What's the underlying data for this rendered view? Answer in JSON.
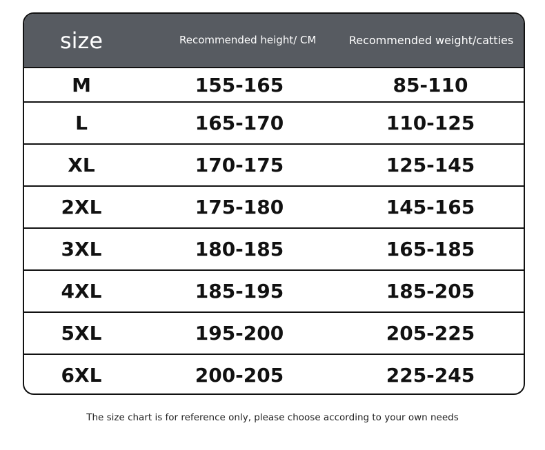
{
  "header": {
    "size": "size",
    "height": "Recommended height/ CM",
    "weight": "Recommended weight/catties"
  },
  "colors": {
    "header_bg": "#575b61",
    "border": "#111111"
  },
  "rows": [
    {
      "size": "M",
      "height": "155-165",
      "weight": "85-110"
    },
    {
      "size": "L",
      "height": "165-170",
      "weight": "110-125"
    },
    {
      "size": "XL",
      "height": "170-175",
      "weight": "125-145"
    },
    {
      "size": "2XL",
      "height": "175-180",
      "weight": "145-165"
    },
    {
      "size": "3XL",
      "height": "180-185",
      "weight": "165-185"
    },
    {
      "size": "4XL",
      "height": "185-195",
      "weight": "185-205"
    },
    {
      "size": "5XL",
      "height": "195-200",
      "weight": "205-225"
    },
    {
      "size": "6XL",
      "height": "200-205",
      "weight": "225-245"
    }
  ],
  "note": "The size chart is for reference only, please choose according to your own needs"
}
